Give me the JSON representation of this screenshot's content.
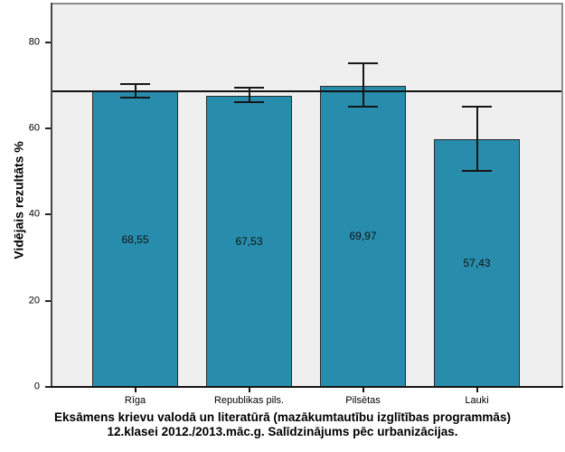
{
  "chart_data": {
    "type": "bar",
    "title": "Eksāmens krievu valodā un literatūrā (mazākumtautību izglītības programmās) 12.klasei 2012./2013.māc.g. Salīdzinājums pēc urbanizācijas.",
    "title_line1": "Eksāmens krievu valodā un literatūrā (mazākumtautību izglītības programmās)",
    "title_line2": "12.klasei 2012./2013.māc.g. Salīdzinājums pēc urbanizācijas.",
    "ylabel": "Vidējais rezultāts %",
    "xlabel": "",
    "categories": [
      "Rīga",
      "Republikas pils.",
      "Pilsētas",
      "Lauki"
    ],
    "values": [
      68.55,
      67.53,
      69.97,
      57.43
    ],
    "value_labels": [
      "68,55",
      "67,53",
      "69,97",
      "57,43"
    ],
    "error_low": [
      67.2,
      66.1,
      65.1,
      50.2
    ],
    "error_high": [
      70.3,
      69.5,
      75.2,
      65.1
    ],
    "reference_line": 68.6,
    "yticks": [
      0,
      20,
      40,
      60,
      80
    ],
    "ylim": [
      0,
      88.8
    ],
    "grid": false,
    "legend": "none",
    "bar_color": "#288CAC",
    "bar_border_color": "#2a2a2a",
    "plot_background": "#efefef",
    "figure_background": "#ffffff"
  }
}
